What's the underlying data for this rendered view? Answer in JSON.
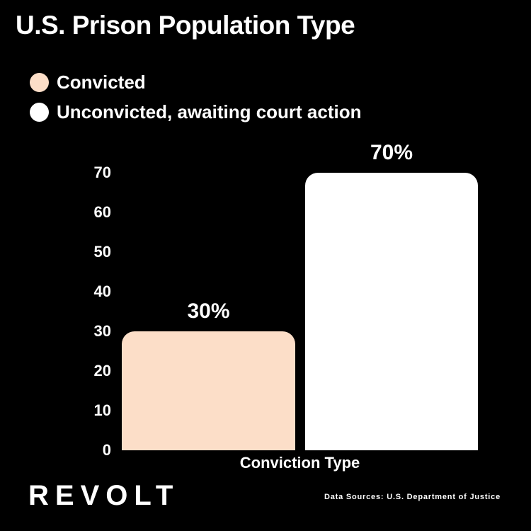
{
  "page": {
    "background_color": "#000000",
    "text_color": "#ffffff"
  },
  "header": {
    "title": "U.S. Prison Population Type"
  },
  "legend": {
    "items": [
      {
        "label": "Convicted",
        "color": "#fcdec8"
      },
      {
        "label": "Unconvicted, awaiting court action",
        "color": "#ffffff"
      }
    ]
  },
  "chart_data": {
    "type": "bar",
    "title": "U.S. Prison Population Type",
    "categories": [
      "Convicted",
      "Unconvicted, awaiting court action"
    ],
    "values": [
      30,
      70
    ],
    "value_labels": [
      "30%",
      "70%"
    ],
    "colors": [
      "#fcdec8",
      "#ffffff"
    ],
    "xlabel": "Conviction Type",
    "ylabel": "",
    "ylim": [
      0,
      70
    ],
    "ytick_step": 10,
    "yticks": [
      0,
      10,
      20,
      30,
      40,
      50,
      60,
      70
    ],
    "grid": false,
    "axis_lines": false,
    "legend_position": "top-left",
    "bar_corner_style": "rounded-top"
  },
  "footer": {
    "logo": "REVOLT",
    "data_sources": "Data Sources: U.S. Department of Justice"
  }
}
